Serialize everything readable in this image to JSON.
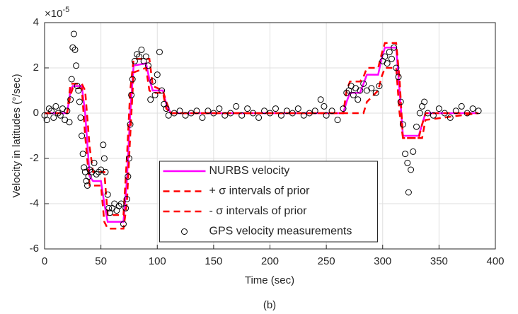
{
  "chart_data": {
    "type": "line",
    "title": "(b)",
    "xlabel": "Time (sec)",
    "ylabel": "Velocity in latitudes (°/sec)",
    "y_multiplier": {
      "base": "×10",
      "exponent": "-5"
    },
    "xlim": [
      0,
      400
    ],
    "xticks": [
      0,
      50,
      100,
      150,
      200,
      250,
      300,
      350,
      400
    ],
    "ylim": [
      -6,
      4
    ],
    "yticks": [
      -6,
      -4,
      -2,
      0,
      2,
      4
    ],
    "grid": true,
    "legend": "south",
    "x": [
      0,
      20,
      23,
      25,
      33,
      36,
      40,
      43,
      50,
      53,
      56,
      70,
      73,
      76,
      79,
      90,
      93,
      96,
      105,
      108,
      112,
      265,
      268,
      271,
      280,
      283,
      286,
      296,
      299,
      302,
      312,
      315,
      318,
      332,
      335,
      338,
      385
    ],
    "series": [
      {
        "name": "NURBS velocity",
        "color": "#ff00ff",
        "style": "solid",
        "values": [
          0,
          0,
          1.0,
          1.2,
          1.2,
          0,
          -2.8,
          -3.0,
          -3.0,
          -4.0,
          -4.8,
          -4.8,
          -3,
          0,
          2.1,
          2.2,
          1.5,
          1.0,
          1.0,
          0.4,
          0,
          0,
          0.5,
          0.9,
          0.9,
          1.3,
          1.7,
          1.7,
          2.4,
          2.9,
          2.9,
          1,
          -1,
          -1,
          -0.5,
          0,
          0
        ]
      },
      {
        "name": "+ σ intervals of prior",
        "color": "#ff0000",
        "style": "dashed",
        "values": [
          0,
          0,
          1.3,
          1.3,
          1.3,
          1.0,
          -1.5,
          -2.6,
          -2.6,
          -2.6,
          -4.5,
          -4.5,
          -2,
          1.0,
          2.4,
          2.4,
          2.4,
          1.2,
          1.0,
          0.5,
          0,
          0,
          1.0,
          1.4,
          1.4,
          1.6,
          2.0,
          2.0,
          2.6,
          3.1,
          3.1,
          1.5,
          -1.1,
          -1.1,
          -0.5,
          0,
          0
        ]
      },
      {
        "name": "- σ intervals of prior",
        "color": "#ff0000",
        "style": "dashed",
        "values": [
          0,
          0,
          0.8,
          1.1,
          1.1,
          -1,
          -3.2,
          -3.2,
          -3.2,
          -4.8,
          -5.1,
          -5.1,
          -4,
          -1,
          1.8,
          2.0,
          1.0,
          0.9,
          0.9,
          0.2,
          0,
          0,
          0,
          0,
          0,
          0,
          0.5,
          1.0,
          1.6,
          2.0,
          2.0,
          0,
          -1.1,
          -1.1,
          -1.1,
          -0.3,
          0
        ]
      },
      {
        "name": "GPS velocity measurements",
        "color": "#000000",
        "style": "marker",
        "x": [
          0,
          2,
          4,
          6,
          8,
          10,
          12,
          14,
          16,
          18,
          20,
          22,
          23,
          24,
          25,
          26,
          27,
          28,
          29,
          30,
          31,
          32,
          33,
          34,
          35,
          36,
          37,
          38,
          39,
          40,
          42,
          44,
          46,
          48,
          50,
          52,
          53,
          54,
          56,
          57,
          58,
          60,
          62,
          64,
          66,
          68,
          70,
          72,
          73,
          74,
          75,
          76,
          77,
          78,
          80,
          82,
          84,
          86,
          88,
          90,
          92,
          94,
          96,
          98,
          100,
          102,
          104,
          106,
          108,
          110,
          115,
          120,
          125,
          130,
          135,
          140,
          145,
          150,
          155,
          160,
          165,
          170,
          175,
          180,
          185,
          190,
          195,
          200,
          205,
          210,
          215,
          220,
          225,
          230,
          235,
          240,
          245,
          248,
          250,
          255,
          260,
          265,
          268,
          270,
          272,
          274,
          276,
          278,
          280,
          283,
          286,
          290,
          294,
          297,
          300,
          302,
          304,
          306,
          308,
          310,
          312,
          314,
          316,
          318,
          320,
          322,
          323,
          325,
          327,
          330,
          333,
          335,
          337,
          340,
          345,
          350,
          355,
          360,
          365,
          370,
          375,
          380,
          385
        ],
        "values": [
          -0.1,
          -0.3,
          0.2,
          0.1,
          -0.2,
          0.3,
          0.0,
          -0.1,
          0.2,
          -0.3,
          0.1,
          -0.4,
          0.6,
          1.5,
          2.9,
          3.5,
          2.8,
          2.1,
          1.2,
          1.0,
          0.5,
          -0.2,
          -1.0,
          -1.8,
          -2.4,
          -2.6,
          -3.0,
          -3.2,
          -2.8,
          -2.5,
          -2.6,
          -2.2,
          -2.7,
          -2.6,
          -2.5,
          -1.4,
          -2.0,
          -2.6,
          -3.6,
          -4.2,
          -4.4,
          -4.2,
          -4.0,
          -4.3,
          -4.1,
          -4.0,
          -4.9,
          -4.2,
          -3.8,
          -2.8,
          -2.0,
          -0.5,
          0.8,
          1.5,
          2.3,
          2.6,
          2.5,
          2.8,
          2.3,
          2.5,
          2.1,
          0.6,
          1.4,
          0.8,
          1.7,
          2.7,
          1.0,
          0.4,
          0.2,
          -0.1,
          0.0,
          0.1,
          -0.1,
          0.0,
          0.1,
          -0.2,
          0.1,
          0.0,
          0.2,
          -0.1,
          0.0,
          0.3,
          -0.1,
          0.2,
          0.0,
          -0.2,
          0.1,
          0.0,
          0.2,
          -0.1,
          0.1,
          0.0,
          0.2,
          -0.1,
          0.0,
          0.1,
          0.6,
          0.3,
          -0.1,
          0.1,
          -0.3,
          0.2,
          0.9,
          1.0,
          1.2,
          0.8,
          1.1,
          0.6,
          1.0,
          1.3,
          1.0,
          1.1,
          0.9,
          1.2,
          2.3,
          2.5,
          2.2,
          2.7,
          2.4,
          2.9,
          2.0,
          1.6,
          0.5,
          -0.5,
          -1.8,
          -2.2,
          -3.5,
          -2.5,
          -1.7,
          -0.6,
          0.0,
          0.3,
          0.5,
          0.0,
          -0.1,
          0.2,
          0.0,
          -0.2,
          0.1,
          0.3,
          0.0,
          0.2,
          0.1
        ]
      }
    ]
  }
}
